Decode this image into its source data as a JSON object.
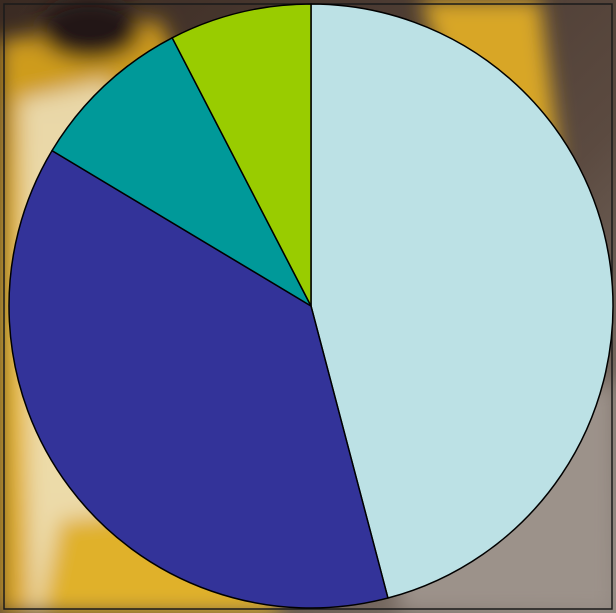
{
  "chart_data": {
    "type": "pie",
    "title": "",
    "start_angle": "top",
    "direction": "clockwise",
    "slices": [
      {
        "value": 45.9,
        "color": "#BCE1E5"
      },
      {
        "value": 37.7,
        "color": "#333399"
      },
      {
        "value": 8.8,
        "color": "#009999"
      },
      {
        "value": 7.6,
        "color": "#99CC00"
      }
    ],
    "stroke_color": "#000000"
  },
  "background": {
    "kind": "photograph",
    "dominant_colors": [
      "#E3B52A",
      "#4A3A2E",
      "#9A8F86",
      "#F2F0EA"
    ]
  }
}
